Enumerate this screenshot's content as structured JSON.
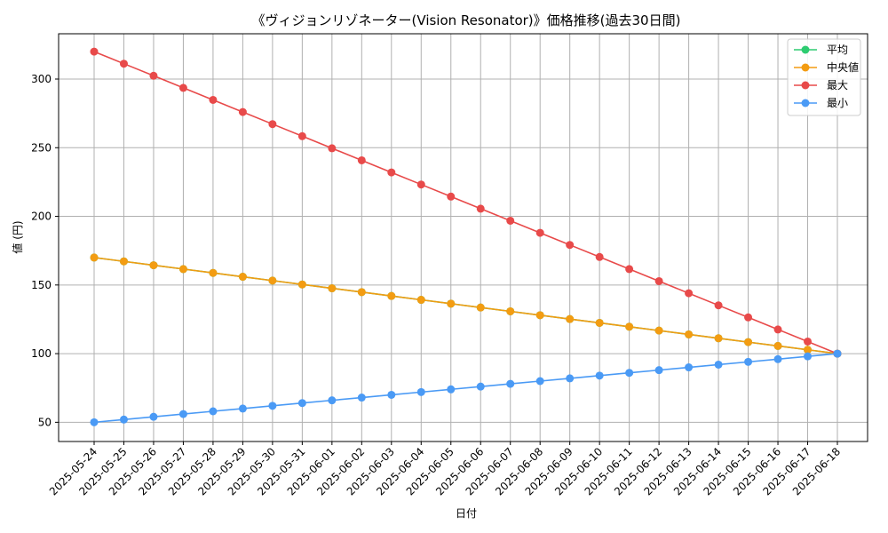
{
  "chart_data": {
    "type": "line",
    "title": "《ヴィジョンリゾネーター(Vision Resonator)》価格推移(過去30日間)",
    "xlabel": "日付",
    "ylabel": "値 (円)",
    "ylim": [
      36,
      333
    ],
    "yticks": [
      50,
      100,
      150,
      200,
      250,
      300
    ],
    "grid": true,
    "legend_position": "top-right",
    "categories": [
      "2025-05-24",
      "2025-05-25",
      "2025-05-26",
      "2025-05-27",
      "2025-05-28",
      "2025-05-29",
      "2025-05-30",
      "2025-05-31",
      "2025-06-01",
      "2025-06-02",
      "2025-06-03",
      "2025-06-04",
      "2025-06-05",
      "2025-06-06",
      "2025-06-07",
      "2025-06-08",
      "2025-06-09",
      "2025-06-10",
      "2025-06-11",
      "2025-06-12",
      "2025-06-13",
      "2025-06-14",
      "2025-06-15",
      "2025-06-16",
      "2025-06-17",
      "2025-06-18"
    ],
    "series": [
      {
        "name": "平均",
        "color": "#2ecc71",
        "values": [
          170,
          167.2,
          164.4,
          161.6,
          158.8,
          156,
          153.2,
          150.4,
          147.6,
          144.8,
          142,
          139.2,
          136.4,
          133.6,
          130.8,
          128,
          125.2,
          122.4,
          119.6,
          116.8,
          114,
          111.2,
          108.4,
          105.6,
          102.8,
          100
        ]
      },
      {
        "name": "中央値",
        "color": "#f39c12",
        "values": [
          170,
          167.2,
          164.4,
          161.6,
          158.8,
          156,
          153.2,
          150.4,
          147.6,
          144.8,
          142,
          139.2,
          136.4,
          133.6,
          130.8,
          128,
          125.2,
          122.4,
          119.6,
          116.8,
          114,
          111.2,
          108.4,
          105.6,
          102.8,
          100
        ]
      },
      {
        "name": "最大",
        "color": "#e84a4a",
        "values": [
          320,
          311.2,
          302.4,
          293.6,
          284.8,
          276,
          267.2,
          258.4,
          249.6,
          240.8,
          232,
          223.2,
          214.4,
          205.6,
          196.8,
          188,
          179.2,
          170.4,
          161.6,
          152.8,
          144,
          135.2,
          126.4,
          117.6,
          108.8,
          100
        ]
      },
      {
        "name": "最小",
        "color": "#4a9af5",
        "values": [
          50,
          52,
          54,
          56,
          58,
          60,
          62,
          64,
          66,
          68,
          70,
          72,
          74,
          76,
          78,
          80,
          82,
          84,
          86,
          88,
          90,
          92,
          94,
          96,
          98,
          100
        ]
      }
    ]
  }
}
